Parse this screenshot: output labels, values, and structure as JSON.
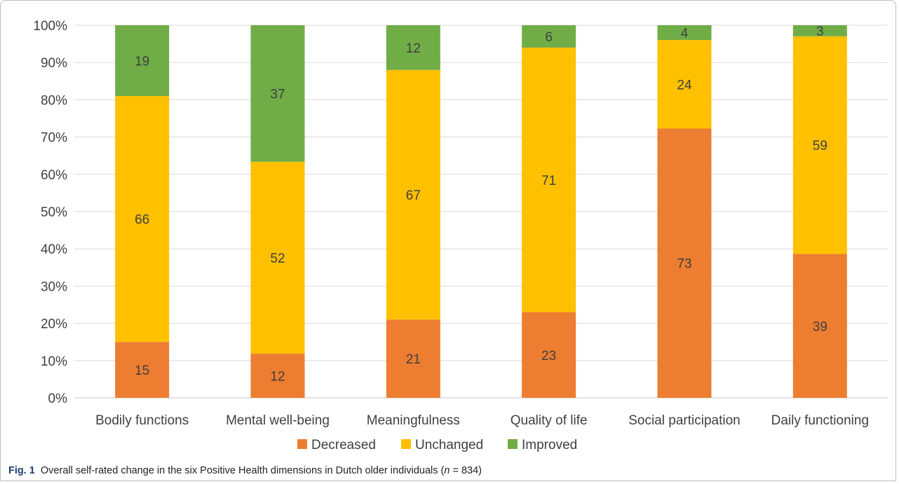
{
  "caption": {
    "label": "Fig. 1",
    "text_before": "Overall self-rated change in the six Positive Health dimensions in Dutch older individuals (",
    "n_symbol": "n",
    "text_after": " = 834)"
  },
  "chart_data": {
    "type": "bar",
    "stacked": true,
    "categories": [
      "Bodily functions",
      "Mental well-being",
      "Meaningfulness",
      "Quality of life",
      "Social participation",
      "Daily functioning"
    ],
    "series": [
      {
        "name": "Decreased",
        "color": "#ED7D31",
        "values": [
          15,
          12,
          21,
          23,
          73,
          39
        ]
      },
      {
        "name": "Unchanged",
        "color": "#FFC000",
        "values": [
          66,
          52,
          67,
          71,
          24,
          59
        ]
      },
      {
        "name": "Improved",
        "color": "#70AD47",
        "values": [
          19,
          37,
          12,
          6,
          4,
          3
        ]
      }
    ],
    "y_ticks": [
      "0%",
      "10%",
      "20%",
      "30%",
      "40%",
      "50%",
      "60%",
      "70%",
      "80%",
      "90%",
      "100%"
    ],
    "ylim": [
      0,
      100
    ],
    "grid": true,
    "legend": "bottom"
  }
}
